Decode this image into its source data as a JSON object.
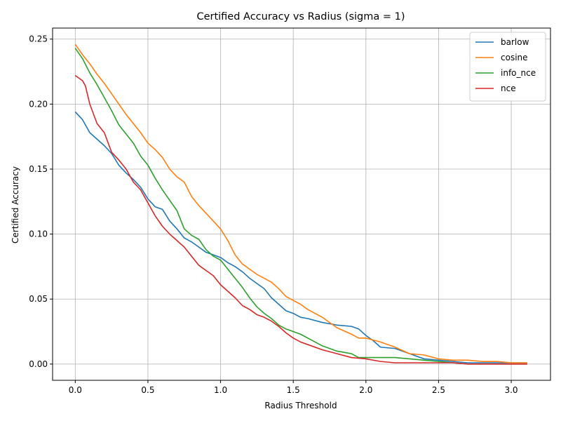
{
  "chart_data": {
    "type": "line",
    "title": "Certified Accuracy vs Radius (sigma = 1)",
    "xlabel": "Radius Threshold",
    "ylabel": "Certified Accuracy",
    "xlim": [
      -0.156,
      3.27
    ],
    "ylim": [
      -0.0125,
      0.2585
    ],
    "xticks": [
      0.0,
      0.5,
      1.0,
      1.5,
      2.0,
      2.5,
      3.0
    ],
    "xtick_labels": [
      "0.0",
      "0.5",
      "1.0",
      "1.5",
      "2.0",
      "2.5",
      "3.0"
    ],
    "yticks": [
      0.0,
      0.05,
      0.1,
      0.15,
      0.2,
      0.25
    ],
    "ytick_labels": [
      "0.00",
      "0.05",
      "0.10",
      "0.15",
      "0.20",
      "0.25"
    ],
    "grid": true,
    "legend_position": "top-right",
    "series": [
      {
        "name": "barlow",
        "color": "#1f77b4",
        "x": [
          0,
          0.05,
          0.1,
          0.2,
          0.25,
          0.3,
          0.35,
          0.4,
          0.45,
          0.5,
          0.55,
          0.6,
          0.65,
          0.7,
          0.75,
          0.8,
          0.85,
          0.9,
          0.95,
          1.0,
          1.05,
          1.1,
          1.15,
          1.2,
          1.25,
          1.3,
          1.35,
          1.4,
          1.45,
          1.5,
          1.55,
          1.6,
          1.7,
          1.8,
          1.9,
          1.95,
          2.0,
          2.05,
          2.1,
          2.2,
          2.3,
          2.4,
          2.5,
          2.6,
          2.7,
          2.8,
          3.0,
          3.11
        ],
        "y": [
          0.194,
          0.188,
          0.178,
          0.168,
          0.162,
          0.153,
          0.147,
          0.142,
          0.136,
          0.127,
          0.121,
          0.119,
          0.11,
          0.104,
          0.097,
          0.094,
          0.09,
          0.086,
          0.084,
          0.082,
          0.078,
          0.075,
          0.071,
          0.066,
          0.062,
          0.058,
          0.051,
          0.046,
          0.041,
          0.039,
          0.036,
          0.035,
          0.032,
          0.03,
          0.029,
          0.027,
          0.022,
          0.018,
          0.013,
          0.012,
          0.008,
          0.004,
          0.003,
          0.002,
          0.001,
          0.001,
          0.001,
          0.001
        ]
      },
      {
        "name": "cosine",
        "color": "#ff7f0e",
        "x": [
          0,
          0.05,
          0.1,
          0.15,
          0.2,
          0.25,
          0.3,
          0.35,
          0.4,
          0.45,
          0.5,
          0.55,
          0.6,
          0.65,
          0.7,
          0.75,
          0.8,
          0.85,
          0.9,
          0.95,
          1.0,
          1.05,
          1.1,
          1.15,
          1.2,
          1.25,
          1.3,
          1.35,
          1.4,
          1.45,
          1.5,
          1.55,
          1.6,
          1.7,
          1.8,
          1.9,
          1.95,
          2.0,
          2.1,
          2.2,
          2.3,
          2.4,
          2.5,
          2.6,
          2.7,
          2.8,
          2.9,
          3.0,
          3.11
        ],
        "y": [
          0.246,
          0.238,
          0.231,
          0.223,
          0.216,
          0.208,
          0.2,
          0.192,
          0.185,
          0.178,
          0.17,
          0.165,
          0.159,
          0.15,
          0.144,
          0.14,
          0.129,
          0.122,
          0.116,
          0.11,
          0.104,
          0.095,
          0.084,
          0.077,
          0.073,
          0.069,
          0.066,
          0.063,
          0.058,
          0.052,
          0.049,
          0.046,
          0.042,
          0.036,
          0.028,
          0.023,
          0.02,
          0.02,
          0.017,
          0.013,
          0.008,
          0.007,
          0.004,
          0.003,
          0.003,
          0.002,
          0.002,
          0.001,
          0.001
        ]
      },
      {
        "name": "info_nce",
        "color": "#2ca02c",
        "x": [
          0,
          0.05,
          0.1,
          0.15,
          0.2,
          0.25,
          0.3,
          0.35,
          0.4,
          0.45,
          0.5,
          0.55,
          0.6,
          0.65,
          0.7,
          0.75,
          0.8,
          0.85,
          0.9,
          0.95,
          1.0,
          1.05,
          1.1,
          1.15,
          1.2,
          1.25,
          1.3,
          1.35,
          1.4,
          1.45,
          1.5,
          1.55,
          1.6,
          1.7,
          1.8,
          1.9,
          1.95,
          2.0,
          2.1,
          2.2,
          2.3,
          2.4,
          2.5,
          2.6,
          2.7,
          2.8,
          3.0,
          3.11
        ],
        "y": [
          0.243,
          0.235,
          0.224,
          0.215,
          0.205,
          0.195,
          0.184,
          0.177,
          0.17,
          0.16,
          0.153,
          0.143,
          0.134,
          0.126,
          0.118,
          0.104,
          0.099,
          0.096,
          0.088,
          0.083,
          0.08,
          0.073,
          0.066,
          0.059,
          0.051,
          0.044,
          0.039,
          0.035,
          0.03,
          0.027,
          0.025,
          0.023,
          0.02,
          0.014,
          0.01,
          0.008,
          0.005,
          0.005,
          0.005,
          0.005,
          0.004,
          0.003,
          0.002,
          0.001,
          0.0,
          0.0,
          0.0,
          0.0
        ]
      },
      {
        "name": "nce",
        "color": "#d62728",
        "x": [
          0,
          0.05,
          0.07,
          0.1,
          0.15,
          0.2,
          0.25,
          0.3,
          0.35,
          0.4,
          0.45,
          0.5,
          0.55,
          0.6,
          0.65,
          0.7,
          0.75,
          0.8,
          0.85,
          0.9,
          0.95,
          1.0,
          1.05,
          1.1,
          1.15,
          1.2,
          1.25,
          1.3,
          1.35,
          1.4,
          1.45,
          1.5,
          1.55,
          1.6,
          1.7,
          1.8,
          1.9,
          2.0,
          2.1,
          2.2,
          2.3,
          2.4,
          2.5,
          2.6,
          2.7,
          2.8,
          3.0,
          3.11
        ],
        "y": [
          0.222,
          0.218,
          0.214,
          0.2,
          0.185,
          0.178,
          0.163,
          0.157,
          0.15,
          0.14,
          0.134,
          0.124,
          0.114,
          0.106,
          0.1,
          0.095,
          0.09,
          0.083,
          0.076,
          0.072,
          0.068,
          0.061,
          0.056,
          0.051,
          0.045,
          0.042,
          0.038,
          0.036,
          0.033,
          0.029,
          0.024,
          0.02,
          0.017,
          0.015,
          0.011,
          0.008,
          0.005,
          0.004,
          0.002,
          0.001,
          0.001,
          0.001,
          0.001,
          0.001,
          0.0,
          0.0,
          0.0,
          0.0
        ]
      }
    ]
  }
}
